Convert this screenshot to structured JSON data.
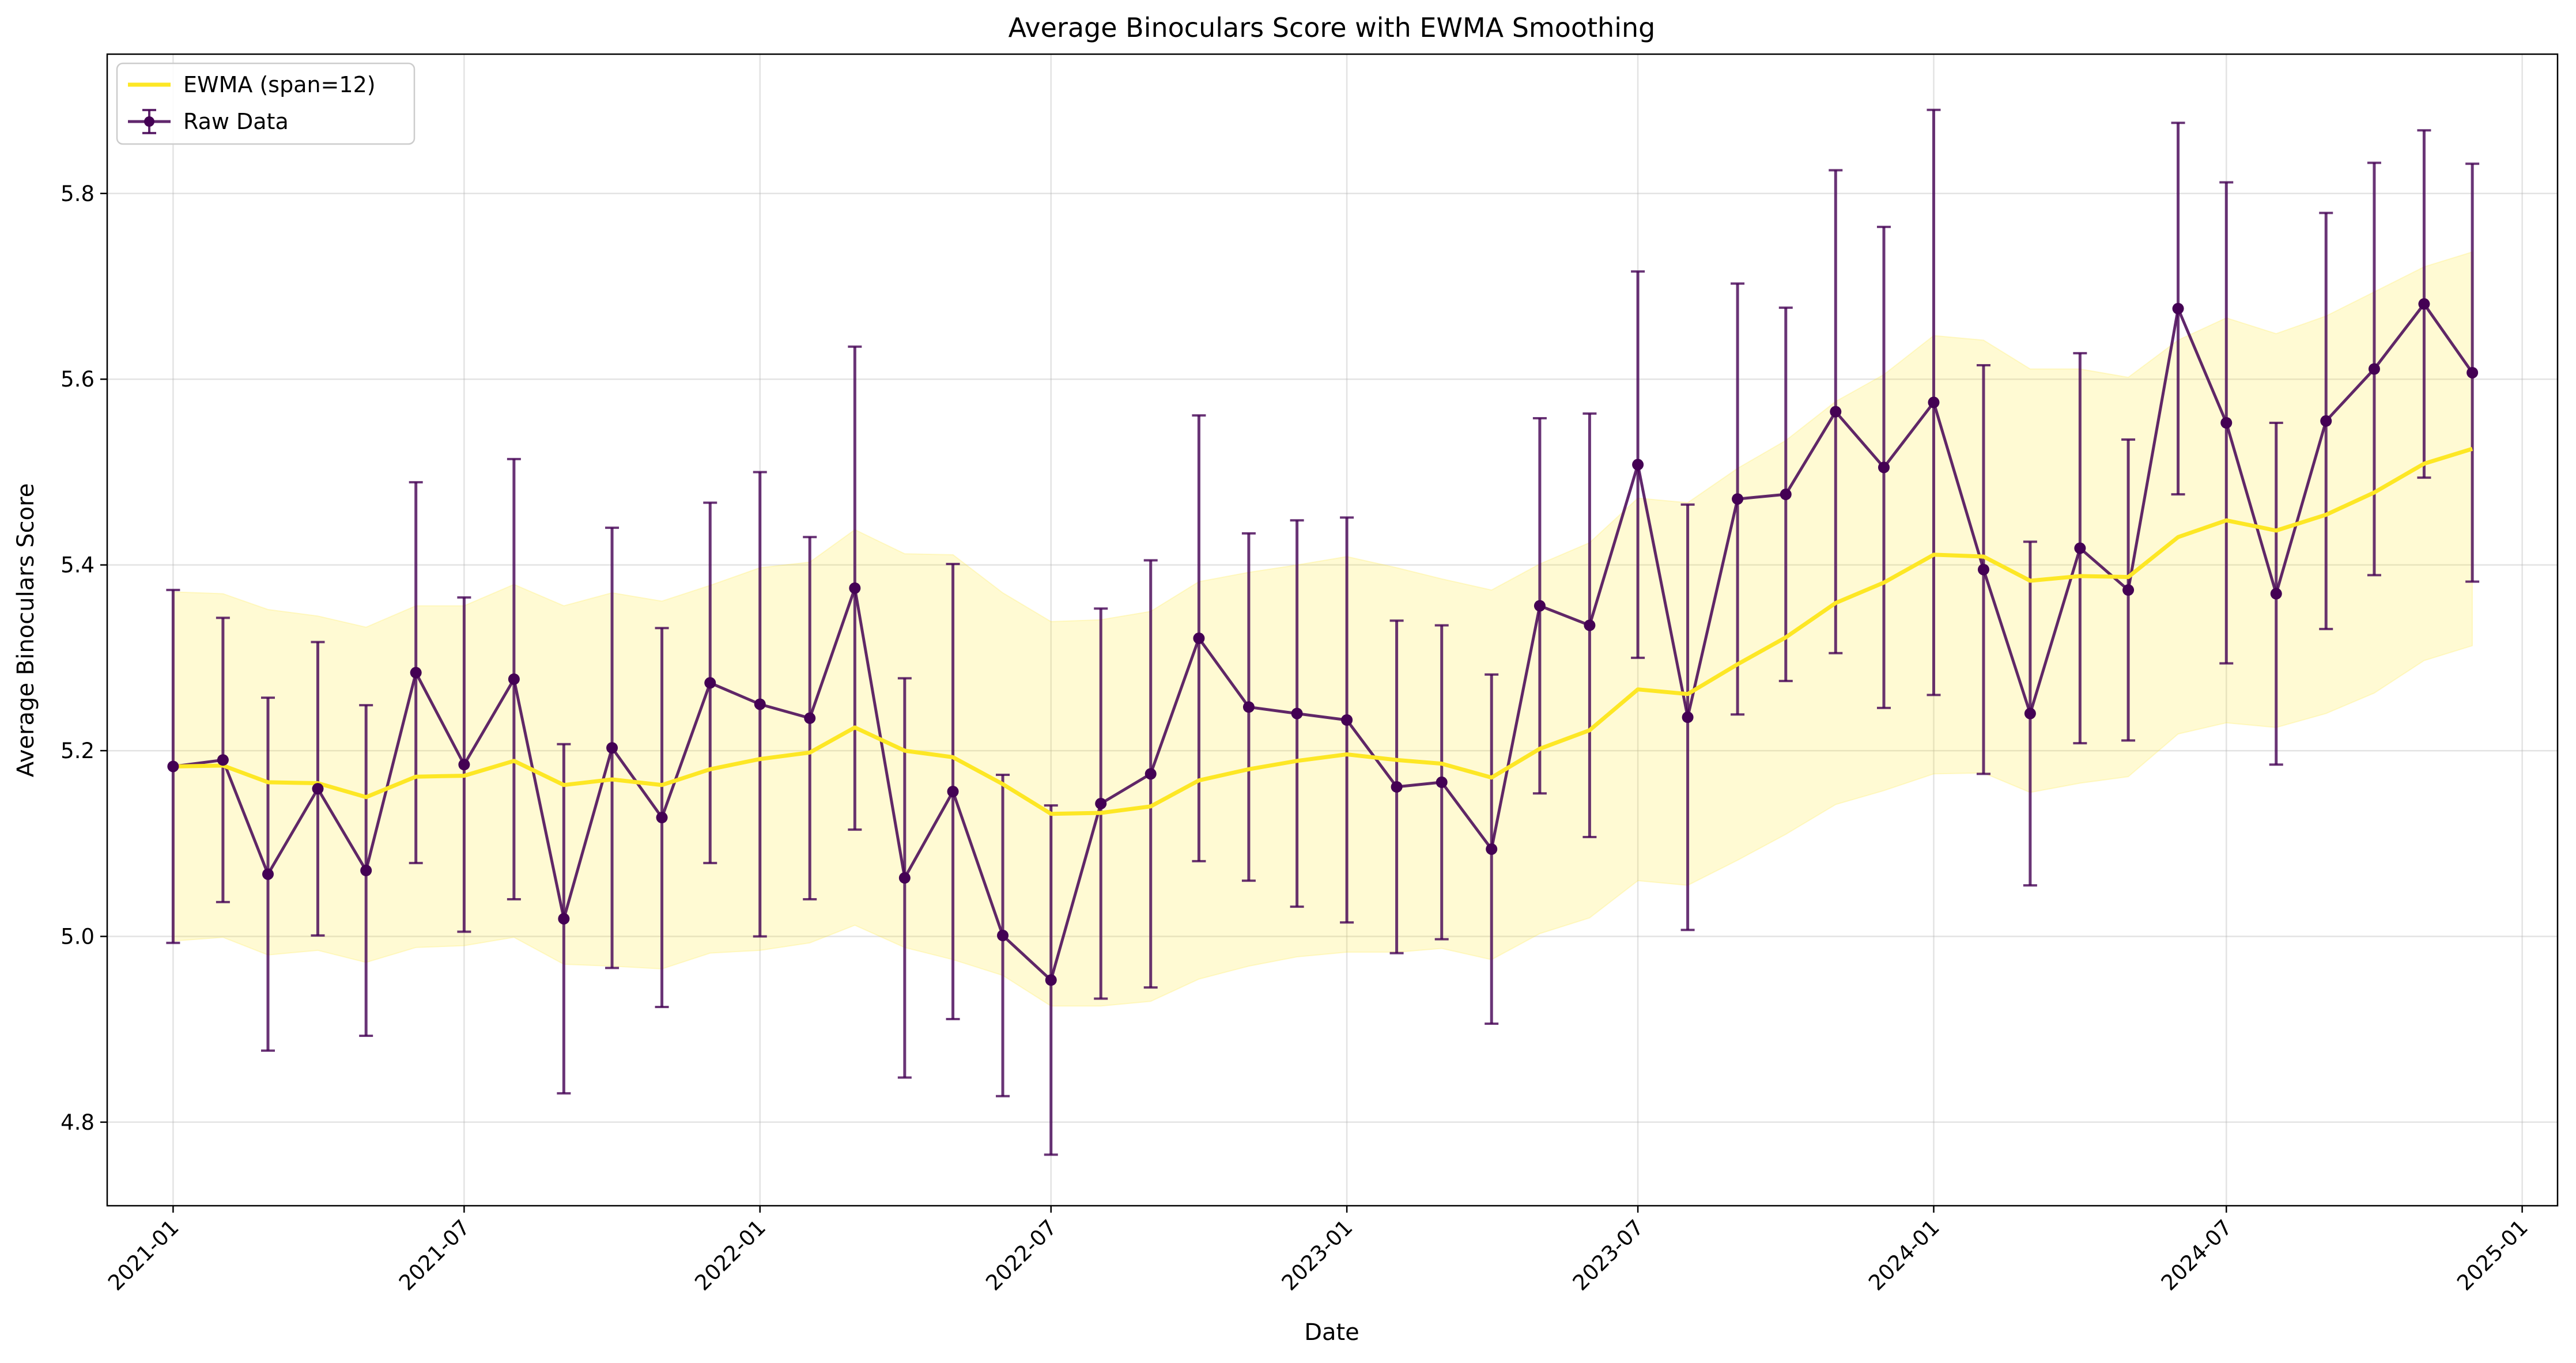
{
  "chart_data": {
    "type": "line",
    "title": "Average Binoculars Score with EWMA Smoothing",
    "xlabel": "Date",
    "ylabel": "Average Binoculars Score",
    "x_tick_labels": [
      "2021-01",
      "2021-07",
      "2022-01",
      "2022-07",
      "2023-01",
      "2023-07",
      "2024-01",
      "2024-07",
      "2025-01"
    ],
    "y_ticks": [
      4.8,
      5.0,
      5.2,
      5.4,
      5.6,
      5.8
    ],
    "y_tick_labels": [
      "4.8",
      "5.0",
      "5.2",
      "5.4",
      "5.6",
      "5.8"
    ],
    "ylim": [
      4.71,
      5.95
    ],
    "xlim": [
      "2020-11-21",
      "2025-01-23"
    ],
    "grid": true,
    "legend_position": "top-left",
    "x": [
      "2021-01-01",
      "2021-02-01",
      "2021-03-01",
      "2021-04-01",
      "2021-05-01",
      "2021-06-01",
      "2021-07-01",
      "2021-08-01",
      "2021-09-01",
      "2021-10-01",
      "2021-11-01",
      "2021-12-01",
      "2022-01-01",
      "2022-02-01",
      "2022-03-01",
      "2022-04-01",
      "2022-05-01",
      "2022-06-01",
      "2022-07-01",
      "2022-08-01",
      "2022-09-01",
      "2022-10-01",
      "2022-11-01",
      "2022-12-01",
      "2023-01-01",
      "2023-02-01",
      "2023-03-01",
      "2023-04-01",
      "2023-05-01",
      "2023-06-01",
      "2023-07-01",
      "2023-08-01",
      "2023-09-01",
      "2023-10-01",
      "2023-11-01",
      "2023-12-01",
      "2024-01-01",
      "2024-02-01",
      "2024-03-01",
      "2024-04-01",
      "2024-05-01",
      "2024-06-01",
      "2024-07-01",
      "2024-08-01",
      "2024-09-01",
      "2024-10-01",
      "2024-11-01",
      "2024-12-01"
    ],
    "series": [
      {
        "name": "Raw Data",
        "kind": "errorbar-line",
        "color": "#440154",
        "values": [
          5.183,
          5.19,
          5.067,
          5.159,
          5.071,
          5.284,
          5.185,
          5.277,
          5.019,
          5.203,
          5.128,
          5.273,
          5.25,
          5.235,
          5.375,
          5.063,
          5.156,
          5.001,
          4.953,
          5.143,
          5.175,
          5.321,
          5.247,
          5.24,
          5.233,
          5.161,
          5.166,
          5.094,
          5.356,
          5.335,
          5.508,
          5.236,
          5.471,
          5.476,
          5.565,
          5.505,
          5.575,
          5.395,
          5.24,
          5.418,
          5.373,
          5.676,
          5.553,
          5.369,
          5.555,
          5.611,
          5.681,
          5.607
        ],
        "yerr": [
          0.19,
          0.153,
          0.19,
          0.158,
          0.178,
          0.205,
          0.18,
          0.237,
          0.188,
          0.237,
          0.204,
          0.194,
          0.25,
          0.195,
          0.26,
          0.215,
          0.245,
          0.173,
          0.188,
          0.21,
          0.23,
          0.24,
          0.187,
          0.208,
          0.218,
          0.179,
          0.169,
          0.188,
          0.202,
          0.228,
          0.208,
          0.229,
          0.232,
          0.201,
          0.26,
          0.259,
          0.315,
          0.22,
          0.185,
          0.21,
          0.162,
          0.2,
          0.259,
          0.184,
          0.224,
          0.222,
          0.187,
          0.225
        ]
      },
      {
        "name": "EWMA (span=12)",
        "kind": "line-with-band",
        "color": "#fde725",
        "values": [
          5.183,
          5.184,
          5.166,
          5.165,
          5.15,
          5.172,
          5.173,
          5.189,
          5.163,
          5.169,
          5.163,
          5.18,
          5.191,
          5.198,
          5.225,
          5.2,
          5.193,
          5.164,
          5.132,
          5.133,
          5.14,
          5.168,
          5.18,
          5.189,
          5.196,
          5.19,
          5.186,
          5.171,
          5.202,
          5.222,
          5.266,
          5.261,
          5.293,
          5.322,
          5.359,
          5.381,
          5.411,
          5.409,
          5.383,
          5.388,
          5.387,
          5.43,
          5.448,
          5.437,
          5.454,
          5.478,
          5.509,
          5.525
        ],
        "band_lower": [
          4.995,
          4.999,
          4.98,
          4.985,
          4.972,
          4.988,
          4.99,
          4.999,
          4.97,
          4.968,
          4.965,
          4.982,
          4.985,
          4.993,
          5.012,
          4.988,
          4.975,
          4.958,
          4.925,
          4.925,
          4.93,
          4.954,
          4.968,
          4.978,
          4.983,
          4.983,
          4.987,
          4.975,
          5.003,
          5.02,
          5.06,
          5.055,
          5.082,
          5.11,
          5.142,
          5.157,
          5.175,
          5.176,
          5.155,
          5.165,
          5.172,
          5.218,
          5.23,
          5.225,
          5.24,
          5.262,
          5.297,
          5.313
        ],
        "band_upper": [
          5.371,
          5.369,
          5.352,
          5.345,
          5.333,
          5.356,
          5.356,
          5.379,
          5.356,
          5.37,
          5.361,
          5.378,
          5.397,
          5.403,
          5.438,
          5.412,
          5.411,
          5.37,
          5.339,
          5.341,
          5.35,
          5.382,
          5.392,
          5.4,
          5.409,
          5.397,
          5.385,
          5.373,
          5.401,
          5.424,
          5.472,
          5.467,
          5.504,
          5.534,
          5.576,
          5.605,
          5.647,
          5.642,
          5.611,
          5.611,
          5.602,
          5.642,
          5.666,
          5.649,
          5.668,
          5.694,
          5.721,
          5.737
        ]
      }
    ]
  }
}
